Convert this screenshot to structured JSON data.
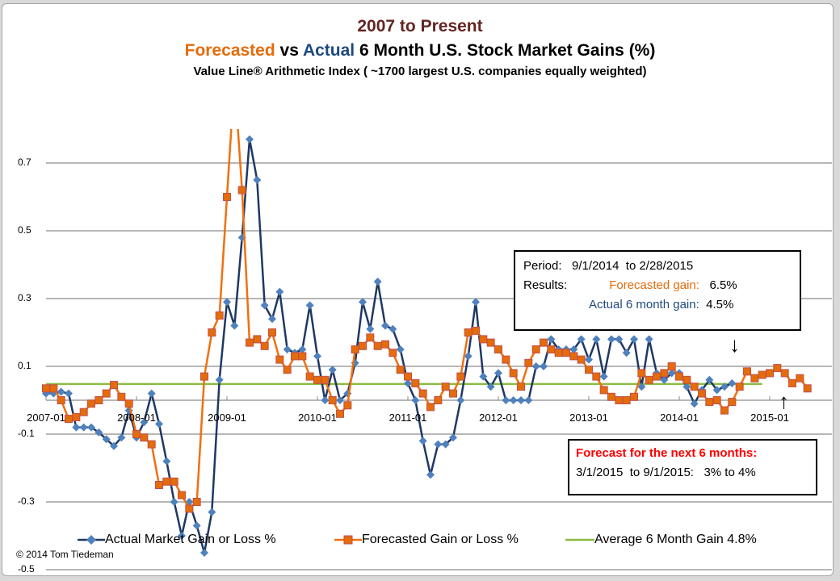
{
  "chart_data": {
    "type": "line",
    "title": "2007 to Present",
    "subtitle_parts": {
      "forecasted": "Forecasted",
      "vs": " vs ",
      "actual": "Actual",
      "rest": " 6 Month U.S. Stock Market Gains (%)"
    },
    "subtitle2": "Value Line® Arithmetic Index ( ~1700  largest U.S. companies equally weighted)",
    "xlabel": "",
    "ylabel": "",
    "ylim": [
      -0.5,
      0.8
    ],
    "yticks": [
      "0.7",
      "0.5",
      "0.3",
      "0.1",
      "-0.1",
      "-0.3",
      "-0.5"
    ],
    "ytick_values": [
      0.7,
      0.5,
      0.3,
      0.1,
      -0.1,
      -0.3,
      -0.5
    ],
    "xticks": [
      "2007-01",
      "2008-01",
      "2009-01",
      "2010-01",
      "2011-01",
      "2012-01",
      "2013-01",
      "2014-01",
      "2015-01"
    ],
    "x_start": "2007-01",
    "x_unit": "month",
    "grid": true,
    "legend_position": "bottom",
    "series": [
      {
        "name": "Actual Market Gain or Loss %",
        "color": "#1f3864",
        "marker_color": "#4f81bd",
        "marker": "diamond",
        "values": [
          0.02,
          0.02,
          0.025,
          0.02,
          -0.08,
          -0.08,
          -0.08,
          -0.095,
          -0.115,
          -0.135,
          -0.11,
          -0.03,
          -0.11,
          -0.065,
          0.02,
          -0.07,
          -0.18,
          -0.3,
          -0.4,
          -0.3,
          -0.37,
          -0.45,
          -0.33,
          0.06,
          0.29,
          0.22,
          0.48,
          0.77,
          0.65,
          0.28,
          0.24,
          0.32,
          0.15,
          0.14,
          0.15,
          0.28,
          0.13,
          0.0,
          0.09,
          0.0,
          0.02,
          0.11,
          0.29,
          0.21,
          0.35,
          0.22,
          0.21,
          0.15,
          0.05,
          0.0,
          -0.12,
          -0.22,
          -0.13,
          -0.13,
          -0.11,
          0.0,
          0.13,
          0.29,
          0.07,
          0.04,
          0.08,
          0.0,
          0.0,
          0.0,
          0.0,
          0.1,
          0.1,
          0.18,
          0.15,
          0.15,
          0.15,
          0.18,
          0.12,
          0.18,
          0.07,
          0.18,
          0.18,
          0.14,
          0.18,
          0.04,
          0.18,
          0.08,
          0.06,
          0.08,
          0.08,
          0.04,
          -0.01,
          0.03,
          0.06,
          0.03,
          0.04,
          0.05
        ]
      },
      {
        "name": "Forecasted Gain or Loss %",
        "color": "#f07010",
        "marker_color": "#e46c0a",
        "marker": "square",
        "values": [
          0.035,
          0.035,
          0.0,
          -0.055,
          -0.05,
          -0.035,
          -0.01,
          0.0,
          0.02,
          0.045,
          0.01,
          -0.01,
          -0.1,
          -0.11,
          -0.13,
          -0.25,
          -0.24,
          -0.24,
          -0.28,
          -0.32,
          -0.3,
          0.07,
          0.2,
          0.25,
          0.6,
          0.95,
          0.62,
          0.17,
          0.18,
          0.16,
          0.2,
          0.12,
          0.09,
          0.13,
          0.13,
          0.07,
          0.06,
          0.06,
          0.0,
          -0.04,
          -0.015,
          0.15,
          0.16,
          0.185,
          0.16,
          0.165,
          0.14,
          0.09,
          0.07,
          0.05,
          0.02,
          -0.02,
          0.0,
          0.04,
          0.02,
          0.07,
          0.2,
          0.205,
          0.18,
          0.17,
          0.15,
          0.12,
          0.08,
          0.04,
          0.11,
          0.15,
          0.17,
          0.15,
          0.14,
          0.14,
          0.13,
          0.12,
          0.09,
          0.07,
          0.03,
          0.01,
          0.0,
          0.0,
          0.01,
          0.08,
          0.06,
          0.07,
          0.08,
          0.1,
          0.07,
          0.06,
          0.04,
          0.02,
          -0.005,
          0.0,
          -0.03,
          -0.005,
          0.04,
          0.085,
          0.065,
          0.075,
          0.08,
          0.095,
          0.08,
          0.05,
          0.065,
          0.035
        ],
        "forecast_start_index": 0
      },
      {
        "name": "Average 6 Month Gain 4.8%",
        "color": "#8cbb44",
        "marker": "none",
        "constant": 0.048
      }
    ]
  },
  "period_box": {
    "period_label": "Period:",
    "period_value": "9/1/2014  to 2/28/2015",
    "results_label": "Results:",
    "forecast_label": "Forecasted gain:",
    "forecast_value": "6.5%",
    "actual_label": "Actual 6 month gain:",
    "actual_value": "4.5%"
  },
  "forecast_box": {
    "heading": "Forecast for  the next 6 months:",
    "detail": "3/1/2015  to 9/1/2015:   3% to 4%"
  },
  "copyright": "©  2014 Tom Tiedeman",
  "arrows": {
    "down": "↓",
    "up": "↑"
  }
}
